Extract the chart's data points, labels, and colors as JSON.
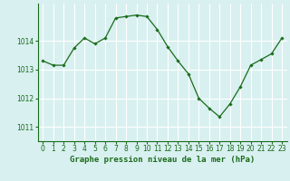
{
  "x": [
    0,
    1,
    2,
    3,
    4,
    5,
    6,
    7,
    8,
    9,
    10,
    11,
    12,
    13,
    14,
    15,
    16,
    17,
    18,
    19,
    20,
    21,
    22,
    23
  ],
  "y": [
    1013.3,
    1013.15,
    1013.15,
    1013.75,
    1014.1,
    1013.9,
    1014.1,
    1014.8,
    1014.85,
    1014.9,
    1014.85,
    1014.4,
    1013.8,
    1013.3,
    1012.85,
    1012.0,
    1011.65,
    1011.35,
    1011.8,
    1012.4,
    1013.15,
    1013.35,
    1013.55,
    1014.1
  ],
  "line_color": "#1a6b1a",
  "marker": "D",
  "marker_size": 1.8,
  "line_width": 0.9,
  "bg_color": "#d8f0f0",
  "grid_color": "#ffffff",
  "yticks": [
    1011,
    1012,
    1013,
    1014
  ],
  "xticks": [
    0,
    1,
    2,
    3,
    4,
    5,
    6,
    7,
    8,
    9,
    10,
    11,
    12,
    13,
    14,
    15,
    16,
    17,
    18,
    19,
    20,
    21,
    22,
    23
  ],
  "xlabel": "Graphe pression niveau de la mer (hPa)",
  "xlabel_color": "#1a6b1a",
  "xlabel_fontsize": 6.5,
  "tick_color": "#1a6b1a",
  "tick_fontsize": 5.5,
  "ylim": [
    1010.5,
    1015.3
  ],
  "xlim": [
    -0.5,
    23.5
  ]
}
